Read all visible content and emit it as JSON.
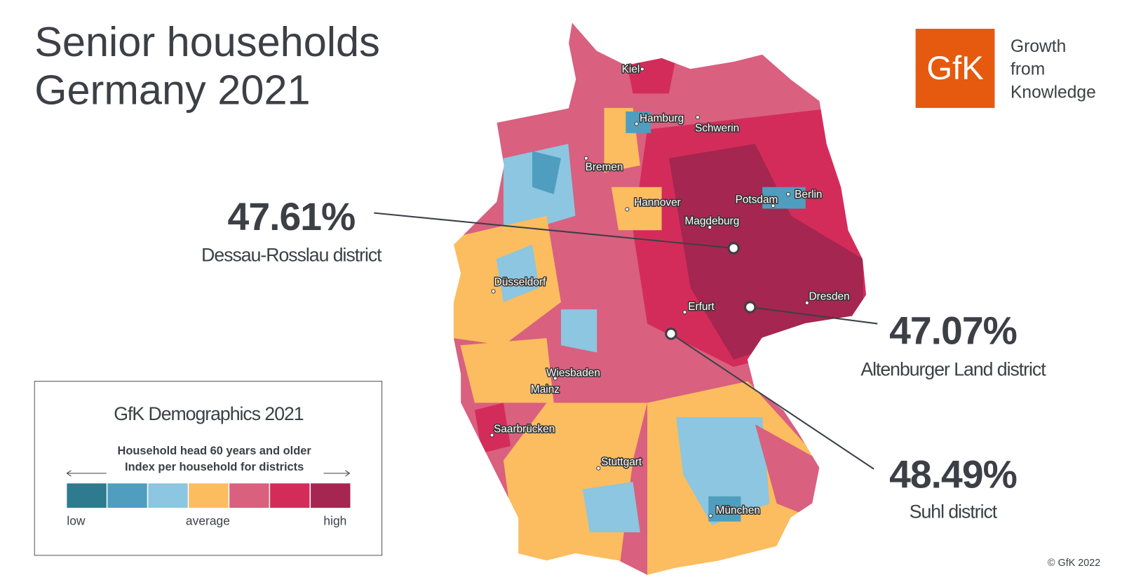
{
  "header": {
    "title_lines": [
      "Senior households",
      "Germany 2021"
    ]
  },
  "logo": {
    "brand": "GfK",
    "tagline": [
      "Growth",
      "from",
      "Knowledge"
    ]
  },
  "cities": [
    "Kiel",
    "Hamburg",
    "Schwerin",
    "Bremen",
    "Hannover",
    "Potsdam",
    "Berlin",
    "Magdeburg",
    "Düsseldorf",
    "Dresden",
    "Erfurt",
    "Wiesbaden",
    "Mainz",
    "Saarbrücken",
    "Stuttgart",
    "München"
  ],
  "callouts": [
    {
      "value": "47.61%",
      "label": "Dessau-Rosslau district"
    },
    {
      "value": "47.07%",
      "label": "Altenburger Land district"
    },
    {
      "value": "48.49%",
      "label": "Suhl district"
    }
  ],
  "legend": {
    "title": "GfK Demographics  2021",
    "subtitle": [
      "Household head 60 years and older",
      "Index per household for districts"
    ],
    "scale_labels": [
      "low",
      "average",
      "high"
    ]
  },
  "copyright": "© GfK 2022"
}
